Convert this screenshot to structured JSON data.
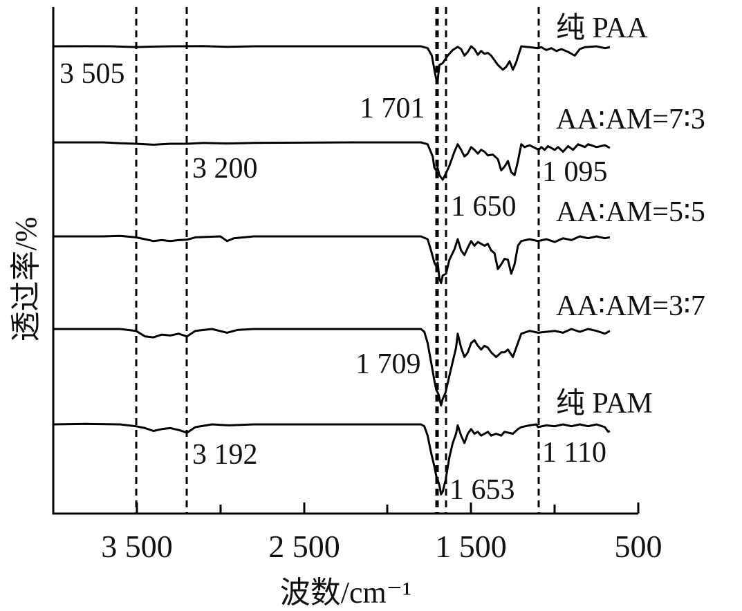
{
  "chart_data": {
    "type": "line",
    "xlabel": "波数/cm⁻¹",
    "ylabel": "透过率/%",
    "xlim": [
      4000,
      500
    ],
    "x_ticks": [
      {
        "value": 3500,
        "label": "3 500"
      },
      {
        "value": 2500,
        "label": "2 500"
      },
      {
        "value": 1500,
        "label": "1 500"
      },
      {
        "value": 500,
        "label": "500"
      }
    ],
    "x_minor_ticks": [
      3000,
      2000,
      1000
    ],
    "reference_lines": [
      3505,
      3200,
      1709,
      1701,
      1650,
      1095
    ],
    "series": [
      {
        "name": "纯 PAA",
        "baseline": 0,
        "points": [
          [
            4000,
            0
          ],
          [
            3800,
            0.1
          ],
          [
            3650,
            0
          ],
          [
            3505,
            -0.8
          ],
          [
            3400,
            -0.3
          ],
          [
            3300,
            0
          ],
          [
            3100,
            0.2
          ],
          [
            2960,
            -0.6
          ],
          [
            2800,
            0
          ],
          [
            2200,
            0
          ],
          [
            1800,
            0
          ],
          [
            1760,
            -2
          ],
          [
            1735,
            -10
          ],
          [
            1720,
            -25
          ],
          [
            1710,
            -34
          ],
          [
            1701,
            -38
          ],
          [
            1690,
            -20
          ],
          [
            1670,
            -18
          ],
          [
            1640,
            -10
          ],
          [
            1610,
            -4
          ],
          [
            1580,
            -0.5
          ],
          [
            1560,
            -3
          ],
          [
            1540,
            -10
          ],
          [
            1520,
            -6
          ],
          [
            1500,
            0
          ],
          [
            1480,
            -3
          ],
          [
            1460,
            -9
          ],
          [
            1440,
            -5
          ],
          [
            1420,
            -8
          ],
          [
            1400,
            -7
          ],
          [
            1380,
            -10
          ],
          [
            1340,
            -20
          ],
          [
            1310,
            -25
          ],
          [
            1290,
            -22
          ],
          [
            1270,
            -16
          ],
          [
            1250,
            -25
          ],
          [
            1230,
            -17
          ],
          [
            1200,
            0
          ],
          [
            1150,
            -1
          ],
          [
            1100,
            -2
          ],
          [
            1080,
            -1
          ],
          [
            1050,
            -4
          ],
          [
            1020,
            -2
          ],
          [
            990,
            -5
          ],
          [
            960,
            -3
          ],
          [
            920,
            -6
          ],
          [
            880,
            -10
          ],
          [
            850,
            -3
          ],
          [
            820,
            -1
          ],
          [
            750,
            0
          ],
          [
            700,
            -2
          ],
          [
            670,
            -1
          ]
        ]
      },
      {
        "name": "AA∶AM=7∶3",
        "baseline": 0,
        "points": [
          [
            4000,
            0
          ],
          [
            3700,
            0
          ],
          [
            3600,
            -1
          ],
          [
            3505,
            -1.5
          ],
          [
            3400,
            -2.5
          ],
          [
            3300,
            -1.5
          ],
          [
            3200,
            -1.5
          ],
          [
            3100,
            -0.5
          ],
          [
            2960,
            -1.2
          ],
          [
            2800,
            -0.5
          ],
          [
            2200,
            0
          ],
          [
            1800,
            0
          ],
          [
            1760,
            -2
          ],
          [
            1730,
            -15
          ],
          [
            1720,
            -27
          ],
          [
            1709,
            -30
          ],
          [
            1701,
            -27
          ],
          [
            1690,
            -35
          ],
          [
            1670,
            -40
          ],
          [
            1650,
            -33
          ],
          [
            1630,
            -25
          ],
          [
            1600,
            -10
          ],
          [
            1580,
            -2
          ],
          [
            1560,
            -8
          ],
          [
            1540,
            -15
          ],
          [
            1520,
            -12
          ],
          [
            1500,
            -5
          ],
          [
            1480,
            -8
          ],
          [
            1460,
            -12
          ],
          [
            1440,
            -8
          ],
          [
            1420,
            -10
          ],
          [
            1400,
            -14
          ],
          [
            1370,
            -13
          ],
          [
            1340,
            -18
          ],
          [
            1320,
            -30
          ],
          [
            1300,
            -26
          ],
          [
            1280,
            -20
          ],
          [
            1260,
            -32
          ],
          [
            1240,
            -35
          ],
          [
            1220,
            -20
          ],
          [
            1200,
            -2
          ],
          [
            1180,
            -5
          ],
          [
            1150,
            -3
          ],
          [
            1095,
            -8
          ],
          [
            1080,
            -5
          ],
          [
            1060,
            -8
          ],
          [
            1040,
            -4
          ],
          [
            1000,
            -8
          ],
          [
            980,
            -5
          ],
          [
            950,
            -10
          ],
          [
            920,
            -4
          ],
          [
            890,
            -8
          ],
          [
            860,
            -2
          ],
          [
            820,
            -5
          ],
          [
            800,
            -2
          ],
          [
            750,
            -5
          ],
          [
            700,
            -3
          ],
          [
            670,
            -6
          ]
        ]
      },
      {
        "name": "AA∶AM=5∶5",
        "baseline": 0,
        "points": [
          [
            4000,
            0
          ],
          [
            3700,
            0
          ],
          [
            3600,
            0.5
          ],
          [
            3505,
            -1
          ],
          [
            3450,
            -3
          ],
          [
            3400,
            -5
          ],
          [
            3350,
            -4
          ],
          [
            3300,
            -5
          ],
          [
            3250,
            -4
          ],
          [
            3200,
            -3.5
          ],
          [
            3150,
            -1
          ],
          [
            3000,
            0
          ],
          [
            2960,
            -5
          ],
          [
            2920,
            -2
          ],
          [
            2800,
            0
          ],
          [
            2200,
            0
          ],
          [
            1800,
            0
          ],
          [
            1760,
            -3
          ],
          [
            1740,
            -15
          ],
          [
            1720,
            -28
          ],
          [
            1709,
            -32
          ],
          [
            1700,
            -28
          ],
          [
            1690,
            -45
          ],
          [
            1680,
            -50
          ],
          [
            1670,
            -42
          ],
          [
            1650,
            -40
          ],
          [
            1630,
            -25
          ],
          [
            1600,
            -14
          ],
          [
            1580,
            -3
          ],
          [
            1560,
            -15
          ],
          [
            1540,
            -20
          ],
          [
            1520,
            -12
          ],
          [
            1500,
            -5
          ],
          [
            1480,
            -10
          ],
          [
            1460,
            -6
          ],
          [
            1440,
            -8
          ],
          [
            1420,
            -10
          ],
          [
            1400,
            -8
          ],
          [
            1380,
            -15
          ],
          [
            1360,
            -18
          ],
          [
            1340,
            -35
          ],
          [
            1320,
            -30
          ],
          [
            1300,
            -24
          ],
          [
            1280,
            -25
          ],
          [
            1260,
            -40
          ],
          [
            1240,
            -30
          ],
          [
            1220,
            -10
          ],
          [
            1200,
            -5
          ],
          [
            1150,
            -3
          ],
          [
            1100,
            -5
          ],
          [
            1050,
            -3
          ],
          [
            1000,
            -6
          ],
          [
            950,
            -2
          ],
          [
            900,
            -4
          ],
          [
            850,
            0
          ],
          [
            800,
            -2
          ],
          [
            750,
            0
          ],
          [
            700,
            -2
          ],
          [
            670,
            -1
          ]
        ]
      },
      {
        "name": "AA∶AM=3∶7",
        "baseline": 0,
        "points": [
          [
            4000,
            0
          ],
          [
            3700,
            0
          ],
          [
            3600,
            0
          ],
          [
            3505,
            -2
          ],
          [
            3450,
            -8
          ],
          [
            3400,
            -9
          ],
          [
            3350,
            -6
          ],
          [
            3300,
            -7
          ],
          [
            3250,
            -5
          ],
          [
            3200,
            -8
          ],
          [
            3150,
            -2
          ],
          [
            3050,
            0
          ],
          [
            2960,
            -4
          ],
          [
            2900,
            -1
          ],
          [
            2800,
            0
          ],
          [
            2200,
            0
          ],
          [
            1800,
            0
          ],
          [
            1780,
            -3
          ],
          [
            1760,
            -15
          ],
          [
            1740,
            -35
          ],
          [
            1720,
            -55
          ],
          [
            1709,
            -65
          ],
          [
            1695,
            -70
          ],
          [
            1680,
            -82
          ],
          [
            1670,
            -75
          ],
          [
            1653,
            -68
          ],
          [
            1630,
            -50
          ],
          [
            1610,
            -35
          ],
          [
            1590,
            -20
          ],
          [
            1580,
            -5
          ],
          [
            1560,
            -20
          ],
          [
            1540,
            -30
          ],
          [
            1520,
            -25
          ],
          [
            1500,
            -15
          ],
          [
            1480,
            -12
          ],
          [
            1460,
            -18
          ],
          [
            1440,
            -22
          ],
          [
            1420,
            -18
          ],
          [
            1400,
            -20
          ],
          [
            1380,
            -25
          ],
          [
            1350,
            -30
          ],
          [
            1320,
            -25
          ],
          [
            1300,
            -25
          ],
          [
            1280,
            -22
          ],
          [
            1250,
            -30
          ],
          [
            1230,
            -20
          ],
          [
            1200,
            -5
          ],
          [
            1150,
            -2
          ],
          [
            1100,
            -4
          ],
          [
            1000,
            -2
          ],
          [
            950,
            -4
          ],
          [
            900,
            0
          ],
          [
            850,
            -3
          ],
          [
            800,
            0
          ],
          [
            750,
            -2
          ],
          [
            700,
            -5
          ],
          [
            670,
            -2
          ]
        ]
      },
      {
        "name": "纯 PAM",
        "baseline": 0,
        "points": [
          [
            4000,
            0
          ],
          [
            3800,
            0.5
          ],
          [
            3600,
            0
          ],
          [
            3505,
            -2
          ],
          [
            3450,
            -4
          ],
          [
            3400,
            -7
          ],
          [
            3350,
            -5
          ],
          [
            3300,
            -4
          ],
          [
            3250,
            -6
          ],
          [
            3200,
            -9
          ],
          [
            3150,
            -3
          ],
          [
            3050,
            0
          ],
          [
            2950,
            -1
          ],
          [
            2800,
            0
          ],
          [
            2200,
            0
          ],
          [
            1800,
            0
          ],
          [
            1780,
            -2
          ],
          [
            1760,
            -12
          ],
          [
            1740,
            -30
          ],
          [
            1720,
            -45
          ],
          [
            1709,
            -55
          ],
          [
            1690,
            -65
          ],
          [
            1680,
            -75
          ],
          [
            1670,
            -72
          ],
          [
            1653,
            -60
          ],
          [
            1630,
            -35
          ],
          [
            1610,
            -20
          ],
          [
            1590,
            -10
          ],
          [
            1580,
            -1
          ],
          [
            1560,
            -12
          ],
          [
            1540,
            -20
          ],
          [
            1520,
            -10
          ],
          [
            1500,
            -5
          ],
          [
            1480,
            -10
          ],
          [
            1460,
            -8
          ],
          [
            1440,
            -12
          ],
          [
            1420,
            -10
          ],
          [
            1400,
            -8
          ],
          [
            1380,
            -12
          ],
          [
            1350,
            -10
          ],
          [
            1320,
            -12
          ],
          [
            1300,
            -8
          ],
          [
            1250,
            -10
          ],
          [
            1220,
            -5
          ],
          [
            1200,
            -3
          ],
          [
            1150,
            -1
          ],
          [
            1110,
            0
          ],
          [
            1100,
            -3
          ],
          [
            1050,
            -1
          ],
          [
            1000,
            -2
          ],
          [
            950,
            0
          ],
          [
            900,
            -2
          ],
          [
            850,
            0
          ],
          [
            800,
            -2
          ],
          [
            750,
            0
          ],
          [
            700,
            -3
          ],
          [
            680,
            -8
          ],
          [
            670,
            -7
          ]
        ]
      }
    ],
    "annotations": [
      {
        "text": "3 505",
        "series": 0
      },
      {
        "text": "1 701",
        "series": 0
      },
      {
        "text": "3 200",
        "series": 1
      },
      {
        "text": "1 650",
        "series": 1
      },
      {
        "text": "1 095",
        "series": 1
      },
      {
        "text": "1 709",
        "series": 3
      },
      {
        "text": "3 192",
        "series": 4
      },
      {
        "text": "1 653",
        "series": 4
      },
      {
        "text": "1 110",
        "series": 4
      }
    ],
    "grid": false,
    "legend": "none"
  }
}
